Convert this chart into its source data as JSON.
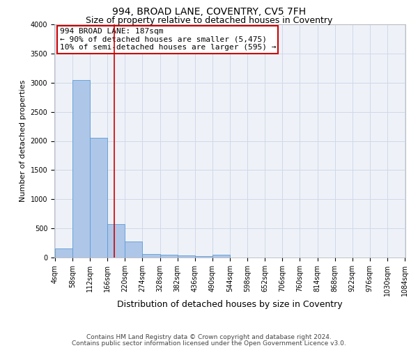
{
  "title": "994, BROAD LANE, COVENTRY, CV5 7FH",
  "subtitle": "Size of property relative to detached houses in Coventry",
  "xlabel": "Distribution of detached houses by size in Coventry",
  "ylabel": "Number of detached properties",
  "footnote1": "Contains HM Land Registry data © Crown copyright and database right 2024.",
  "footnote2": "Contains public sector information licensed under the Open Government Licence v3.0.",
  "annotation_line1": "994 BROAD LANE: 187sqm",
  "annotation_line2": "← 90% of detached houses are smaller (5,475)",
  "annotation_line3": "10% of semi-detached houses are larger (595) →",
  "bar_edges": [
    4,
    58,
    112,
    166,
    220,
    274,
    328,
    382,
    436,
    490,
    544,
    598,
    652,
    706,
    760,
    814,
    868,
    922,
    976,
    1030,
    1084
  ],
  "bar_heights": [
    150,
    3050,
    2050,
    570,
    270,
    60,
    50,
    30,
    20,
    50,
    0,
    0,
    0,
    0,
    0,
    0,
    0,
    0,
    0,
    0
  ],
  "bar_color": "#aec6e8",
  "bar_edge_color": "#5b9bd5",
  "vline_x": 187,
  "vline_color": "#cc0000",
  "ylim": [
    0,
    4000
  ],
  "yticks": [
    0,
    500,
    1000,
    1500,
    2000,
    2500,
    3000,
    3500,
    4000
  ],
  "grid_color": "#d0d8e8",
  "bg_color": "#eef2f8",
  "title_fontsize": 10,
  "subtitle_fontsize": 9,
  "ylabel_fontsize": 8,
  "xlabel_fontsize": 9,
  "tick_fontsize": 7,
  "annotation_fontsize": 8,
  "footnote_fontsize": 6.5
}
